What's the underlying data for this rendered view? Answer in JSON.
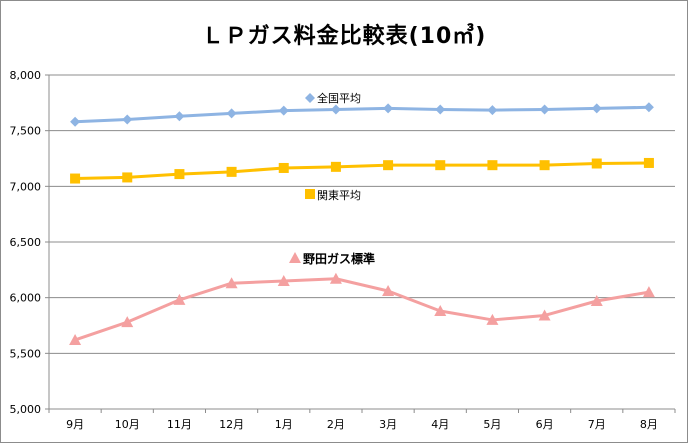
{
  "chart_data": {
    "type": "line",
    "title": "ＬＰガス料金比較表(10㎥)",
    "categories": [
      "9月",
      "10月",
      "11月",
      "12月",
      "1月",
      "2月",
      "3月",
      "4月",
      "5月",
      "6月",
      "7月",
      "8月"
    ],
    "ylim": [
      5000,
      8000
    ],
    "yticks": [
      "5,000",
      "5,500",
      "6,000",
      "6,500",
      "7,000",
      "7,500",
      "8,000"
    ],
    "ytick_values": [
      5000,
      5500,
      6000,
      6500,
      7000,
      7500,
      8000
    ],
    "grid": true,
    "series": [
      {
        "name": "全国平均",
        "color": "#8eb4e3",
        "marker": "diamond",
        "values": [
          7580,
          7600,
          7630,
          7655,
          7680,
          7690,
          7700,
          7690,
          7685,
          7690,
          7700,
          7710
        ]
      },
      {
        "name": "関東平均",
        "color": "#ffc000",
        "marker": "square",
        "values": [
          7070,
          7080,
          7110,
          7130,
          7165,
          7175,
          7190,
          7190,
          7190,
          7190,
          7205,
          7210
        ]
      },
      {
        "name": "野田ガス標準",
        "color": "#f4a0a0",
        "marker": "triangle",
        "values": [
          5620,
          5780,
          5980,
          6130,
          6150,
          6170,
          6060,
          5880,
          5800,
          5840,
          5970,
          6050
        ]
      }
    ]
  }
}
